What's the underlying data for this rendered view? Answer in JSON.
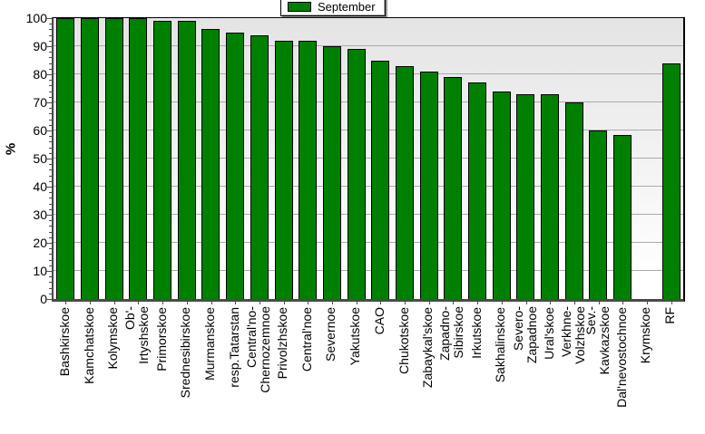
{
  "chart_data": {
    "type": "bar",
    "title": "",
    "legend_label": "September",
    "legend_position": "top-center",
    "xlabel": "",
    "ylabel": "%",
    "ylim": [
      0,
      100
    ],
    "yticks": [
      0,
      10,
      20,
      30,
      40,
      50,
      60,
      70,
      80,
      90,
      100
    ],
    "y_minor_tick_step": 2,
    "grid": true,
    "categories": [
      "Bashkirskoe",
      "Kamchatskoe",
      "Kolymskoe",
      "Ob'-\nIrtyshskoe",
      "Primorskoe",
      "Srednesibirskoe",
      "Murmanskoe",
      "resp.Tatarstan",
      "Central'no-\nChernozemnoe",
      "Privolzhskoe",
      "Central'noe",
      "Severnoe",
      "Yakutskoe",
      "CAO",
      "Chukotskoe",
      "Zabaykal'skoe",
      "Zapadno-\nSibirskoe",
      "Irkutskoe",
      "Sakhalinskoe",
      "Severo-\nZapadnoe",
      "Ural'skoe",
      "Verkhne-\nVolzhskoe",
      "Sev.-\nKavkazskoe",
      "Dal'nevostochnoe",
      "Krymskoe",
      "RF"
    ],
    "series": [
      {
        "name": "September",
        "values": [
          100,
          100,
          100,
          100,
          99,
          99,
          96,
          95,
          94,
          92,
          92,
          90,
          89,
          85,
          83,
          81,
          79,
          77,
          74,
          73,
          73,
          70,
          60,
          58.5,
          0,
          84
        ]
      }
    ]
  },
  "colors": {
    "bar": "#008000",
    "bar_border": "#000000",
    "grid": "#ababab",
    "axis_dark": "#4a4a4a",
    "tick": "#4a4a4a",
    "plot_bg_top": "#e4e4e4",
    "plot_bg_bottom": "#ffffff",
    "text": "#000000"
  }
}
